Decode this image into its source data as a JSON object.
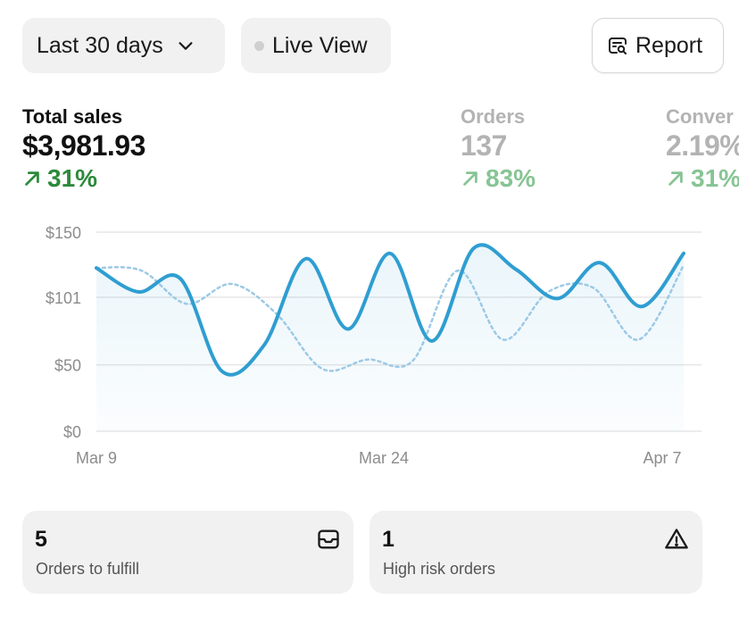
{
  "toolbar": {
    "range_label": "Last 30 days",
    "live_label": "Live View",
    "report_label": "Report"
  },
  "metrics": [
    {
      "label": "Total sales",
      "value": "$3,981.93",
      "change": "31%",
      "direction": "up"
    },
    {
      "label": "Orders",
      "value": "137",
      "change": "83%",
      "direction": "up"
    },
    {
      "label": "Conver",
      "value": "2.19%",
      "change": "31%",
      "direction": "up"
    }
  ],
  "chart_data": {
    "type": "line",
    "x_labels": [
      "Mar 9",
      "Mar 24",
      "Apr 7"
    ],
    "y_ticks": [
      "$150",
      "$101",
      "$50",
      "$0"
    ],
    "ylim": [
      0,
      150
    ],
    "grid": true,
    "series": [
      {
        "style": "solid",
        "color": "#2f9ed1",
        "values": [
          123,
          105,
          115,
          45,
          65,
          130,
          77,
          134,
          68,
          138,
          122,
          100,
          127,
          94,
          134
        ]
      },
      {
        "style": "dashed",
        "color": "#9cc9e6",
        "values": [
          123,
          121,
          96,
          111,
          88,
          47,
          54,
          53,
          121,
          69,
          105,
          108,
          69,
          125
        ]
      }
    ]
  },
  "cards": [
    {
      "count": "5",
      "label": "Orders to fulfill",
      "icon": "inbox-icon"
    },
    {
      "count": "1",
      "label": "High risk orders",
      "icon": "warning-icon"
    }
  ]
}
